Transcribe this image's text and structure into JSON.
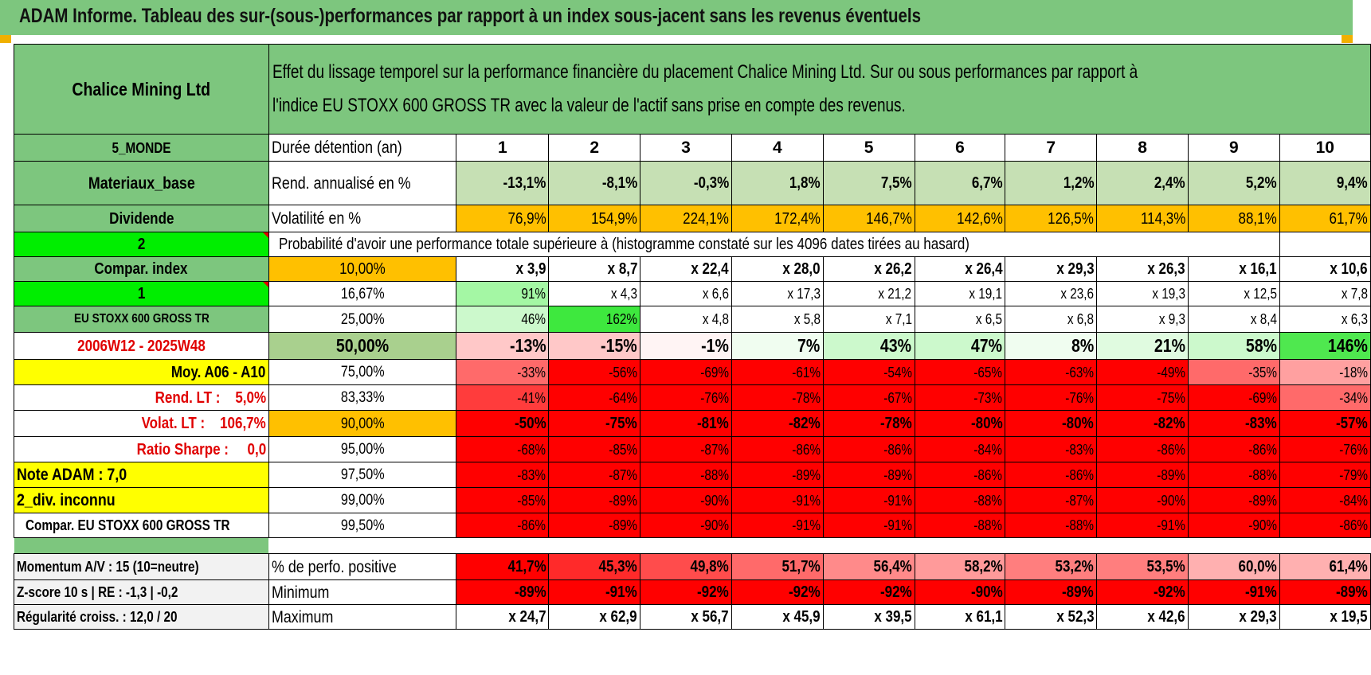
{
  "title": "ADAM Informe. Tableau des sur-(sous-)performances par rapport à un index sous-jacent sans les revenus éventuels",
  "header": {
    "asset": "Chalice Mining Ltd",
    "description_line1": "Effet du lissage temporel sur la performance financière du placement Chalice Mining Ltd. Sur ou sous performances par rapport à",
    "description_line2": "l'indice EU STOXX 600 GROSS TR avec la valeur de l'actif sans prise en compte des revenus."
  },
  "left": {
    "region": "5_MONDE",
    "sector": "Materiaux_base",
    "dividend_label": "Dividende",
    "param_2": "2",
    "compar_index": "Compar. index",
    "param_1": "1",
    "index_name": "EU STOXX 600 GROSS TR",
    "period": "2006W12 - 2025W48",
    "moy": "Moy. A06 - A10",
    "rend_lt": "Rend. LT :    5,0%",
    "volat_lt": "Volat. LT :    106,7%",
    "sharpe": "Ratio Sharpe :     0,0",
    "note": "Note ADAM : 7,0",
    "div": "2_div. inconnu",
    "compar_full": "Compar. EU STOXX 600 GROSS TR",
    "momentum": "Momentum A/V : 15 (10=neutre)",
    "zscore": "Z-score 10 s | RE : -1,3 | -0,2",
    "regularite": "Régularité croiss. : 12,0 / 20"
  },
  "labels": {
    "duree": "Durée détention (an)",
    "rend": "Rend. annualisé en %",
    "vol": "Volatilité en %",
    "proba": "Probabilité d'avoir une performance totale supérieure à (histogramme constaté sur les 4096 dates tirées au hasard)",
    "pos": "% de perfo. positive",
    "min": "Minimum",
    "max": "Maximum"
  },
  "years": [
    "1",
    "2",
    "3",
    "4",
    "5",
    "6",
    "7",
    "8",
    "9",
    "10"
  ],
  "rend": [
    "-13,1%",
    "-8,1%",
    "-0,3%",
    "1,8%",
    "7,5%",
    "6,7%",
    "1,2%",
    "2,4%",
    "5,2%",
    "9,4%"
  ],
  "vol": [
    "76,9%",
    "154,9%",
    "224,1%",
    "172,4%",
    "146,7%",
    "142,6%",
    "126,5%",
    "114,3%",
    "88,1%",
    "61,7%"
  ],
  "quantiles": [
    {
      "p": "10,00%",
      "v": [
        "x 3,9",
        "x 8,7",
        "x 22,4",
        "x 28,0",
        "x 26,2",
        "x 26,4",
        "x 29,3",
        "x 26,3",
        "x 16,1",
        "x 10,6"
      ]
    },
    {
      "p": "16,67%",
      "v": [
        "91%",
        "x 4,3",
        "x 6,6",
        "x 17,3",
        "x 21,2",
        "x 19,1",
        "x 23,6",
        "x 19,3",
        "x 12,5",
        "x 7,8"
      ]
    },
    {
      "p": "25,00%",
      "v": [
        "46%",
        "162%",
        "x 4,8",
        "x 5,8",
        "x 7,1",
        "x 6,5",
        "x 6,8",
        "x 9,3",
        "x 8,4",
        "x 6,3"
      ]
    },
    {
      "p": "50,00%",
      "v": [
        "-13%",
        "-15%",
        "-1%",
        "7%",
        "43%",
        "47%",
        "8%",
        "21%",
        "58%",
        "146%"
      ]
    },
    {
      "p": "75,00%",
      "v": [
        "-33%",
        "-56%",
        "-69%",
        "-61%",
        "-54%",
        "-65%",
        "-63%",
        "-49%",
        "-35%",
        "-18%"
      ]
    },
    {
      "p": "83,33%",
      "v": [
        "-41%",
        "-64%",
        "-76%",
        "-78%",
        "-67%",
        "-73%",
        "-76%",
        "-75%",
        "-69%",
        "-34%"
      ]
    },
    {
      "p": "90,00%",
      "v": [
        "-50%",
        "-75%",
        "-81%",
        "-82%",
        "-78%",
        "-80%",
        "-80%",
        "-82%",
        "-83%",
        "-57%"
      ]
    },
    {
      "p": "95,00%",
      "v": [
        "-68%",
        "-85%",
        "-87%",
        "-86%",
        "-86%",
        "-84%",
        "-83%",
        "-86%",
        "-86%",
        "-76%"
      ]
    },
    {
      "p": "97,50%",
      "v": [
        "-83%",
        "-87%",
        "-88%",
        "-89%",
        "-89%",
        "-86%",
        "-86%",
        "-89%",
        "-88%",
        "-79%"
      ]
    },
    {
      "p": "99,00%",
      "v": [
        "-85%",
        "-89%",
        "-90%",
        "-91%",
        "-91%",
        "-88%",
        "-87%",
        "-90%",
        "-89%",
        "-84%"
      ]
    },
    {
      "p": "99,50%",
      "v": [
        "-86%",
        "-89%",
        "-90%",
        "-91%",
        "-91%",
        "-88%",
        "-88%",
        "-91%",
        "-90%",
        "-86%"
      ]
    }
  ],
  "pos": [
    "41,7%",
    "45,3%",
    "49,8%",
    "51,7%",
    "56,4%",
    "58,2%",
    "53,2%",
    "53,5%",
    "60,0%",
    "61,4%"
  ],
  "min": [
    "-89%",
    "-91%",
    "-92%",
    "-92%",
    "-92%",
    "-90%",
    "-89%",
    "-92%",
    "-91%",
    "-89%"
  ],
  "max": [
    "x 24,7",
    "x 62,9",
    "x 56,7",
    "x 45,9",
    "x 39,5",
    "x 61,1",
    "x 52,3",
    "x 42,6",
    "x 29,3",
    "x 19,5"
  ],
  "colors": {
    "header_green": "#7dc67e",
    "pale_green": "#c6e0b4",
    "orange": "#ffc000",
    "bright_green": "#00ee00",
    "yellow": "#ffff00",
    "red": "#ff0000"
  }
}
